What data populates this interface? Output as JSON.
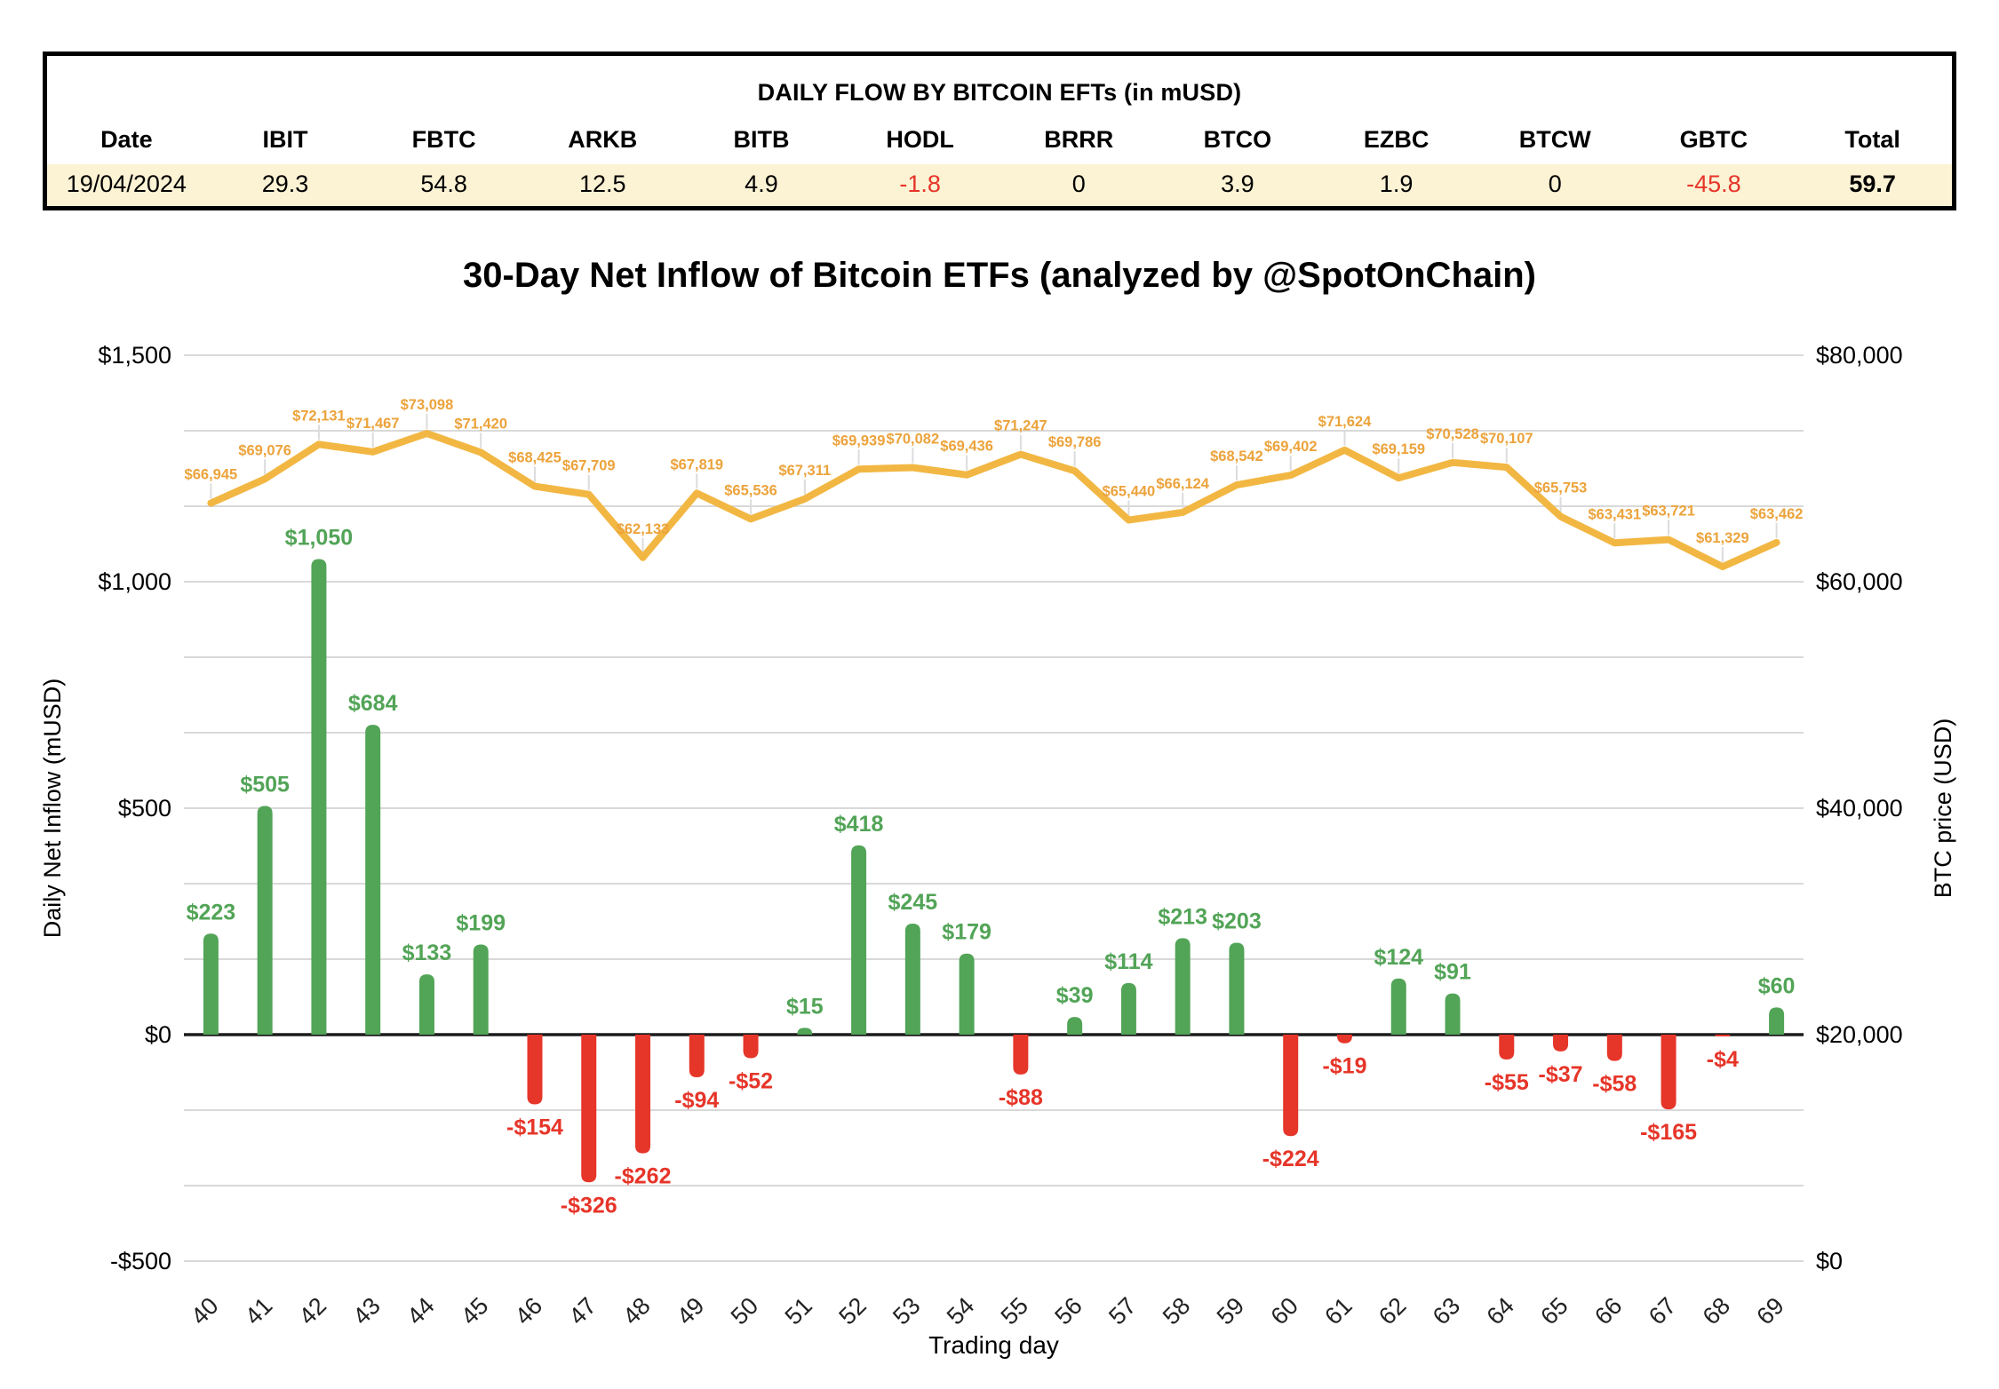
{
  "table": {
    "title": "DAILY FLOW BY BITCOIN EFTs (in mUSD)",
    "columns": [
      "Date",
      "IBIT",
      "FBTC",
      "ARKB",
      "BITB",
      "HODL",
      "BRRR",
      "BTCO",
      "EZBC",
      "BTCW",
      "GBTC",
      "Total"
    ],
    "row": {
      "cells": [
        "19/04/2024",
        "29.3",
        "54.8",
        "12.5",
        "4.9",
        "-1.8",
        "0",
        "3.9",
        "1.9",
        "0",
        "-45.8",
        "59.7"
      ]
    }
  },
  "chart": {
    "title": "30-Day Net Inflow of Bitcoin ETFs (analyzed by @SpotOnChain)"
  },
  "chart_data": {
    "type": "combo",
    "title": "30-Day Net Inflow of Bitcoin ETFs (analyzed by @SpotOnChain)",
    "xlabel": "Trading day",
    "categories": [
      "40",
      "41",
      "42",
      "43",
      "44",
      "45",
      "46",
      "47",
      "48",
      "49",
      "50",
      "51",
      "52",
      "53",
      "54",
      "55",
      "56",
      "57",
      "58",
      "59",
      "60",
      "61",
      "62",
      "63",
      "64",
      "65",
      "66",
      "67",
      "68",
      "69"
    ],
    "grid": true,
    "series": [
      {
        "name": "Daily Net Inflow",
        "type": "bar",
        "axis": "left",
        "axis_label": "Daily Net Inflow (mUSD)",
        "ylim": [
          -500,
          1500
        ],
        "y_ticks": [
          "$1,500",
          "$1,000",
          "$500",
          "$0",
          "-$500"
        ],
        "values": [
          223,
          505,
          1050,
          684,
          133,
          199,
          -154,
          -326,
          -262,
          -94,
          -52,
          15,
          418,
          245,
          179,
          -88,
          39,
          114,
          213,
          203,
          -224,
          -19,
          124,
          91,
          -55,
          -37,
          -58,
          -165,
          -4,
          60
        ],
        "color_positive": "#52A457",
        "color_negative": "#E63529"
      },
      {
        "name": "BTC price",
        "type": "line",
        "axis": "right",
        "axis_label": "BTC price (USD)",
        "ylim": [
          0,
          80000
        ],
        "y_ticks": [
          "$80,000",
          "$60,000",
          "$40,000",
          "$20,000",
          "$0"
        ],
        "values": [
          66945,
          69076,
          72131,
          71467,
          73098,
          71420,
          68425,
          67709,
          62133,
          67819,
          65536,
          67311,
          69939,
          70082,
          69436,
          71247,
          69786,
          65440,
          66124,
          68542,
          69402,
          71624,
          69159,
          70528,
          70107,
          65753,
          63431,
          63721,
          61329,
          63462
        ],
        "color": "#F2B743",
        "label_color": "#ECA33B"
      }
    ]
  },
  "colors": {
    "table_row_bg": "#FCF2D4",
    "negative_red": "#E63529",
    "positive_green": "#52A457",
    "line_yellow": "#F2B743",
    "price_label": "#ECA33B",
    "gridline": "#D9D9D9",
    "zero_axis": "#1B1B1B",
    "leader_tick": "#DCDCDC"
  }
}
